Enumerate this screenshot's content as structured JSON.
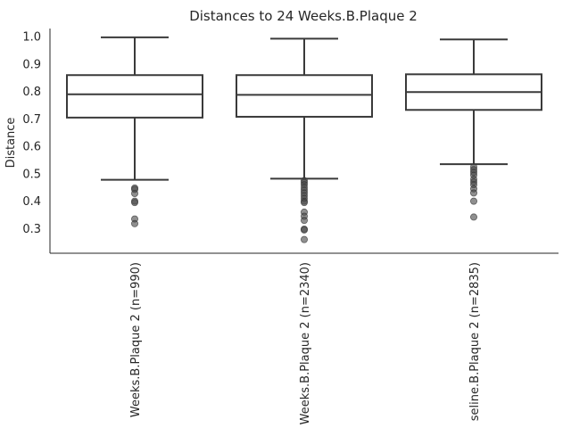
{
  "chart_data": {
    "type": "box",
    "title": "Distances to 24 Weeks.B.Plaque 2",
    "xlabel": "",
    "ylabel": "Distance",
    "ylim": [
      0.21,
      1.03
    ],
    "yticks": [
      "0.3",
      "0.4",
      "0.5",
      "0.6",
      "0.7",
      "0.8",
      "0.9",
      "1.0"
    ],
    "grid": false,
    "categories": [
      "Weeks.B.Plaque 2 (n=990)",
      "Weeks.B.Plaque 2 (n=2340)",
      "seline.B.Plaque 2 (n=2835)"
    ],
    "boxes": [
      {
        "whislo": 0.478,
        "q1": 0.705,
        "med": 0.79,
        "q3": 0.86,
        "whishi": 0.998,
        "fliers": [
          0.448,
          0.443,
          0.428,
          0.4,
          0.395,
          0.335,
          0.318
        ]
      },
      {
        "whislo": 0.482,
        "q1": 0.708,
        "med": 0.788,
        "q3": 0.86,
        "whishi": 0.993,
        "fliers": [
          0.475,
          0.468,
          0.46,
          0.45,
          0.44,
          0.43,
          0.42,
          0.41,
          0.4,
          0.395,
          0.36,
          0.345,
          0.33,
          0.298,
          0.295,
          0.26
        ]
      },
      {
        "whislo": 0.535,
        "q1": 0.733,
        "med": 0.798,
        "q3": 0.863,
        "whishi": 0.99,
        "fliers": [
          0.525,
          0.515,
          0.505,
          0.495,
          0.48,
          0.47,
          0.46,
          0.445,
          0.43,
          0.4,
          0.342
        ]
      }
    ]
  }
}
